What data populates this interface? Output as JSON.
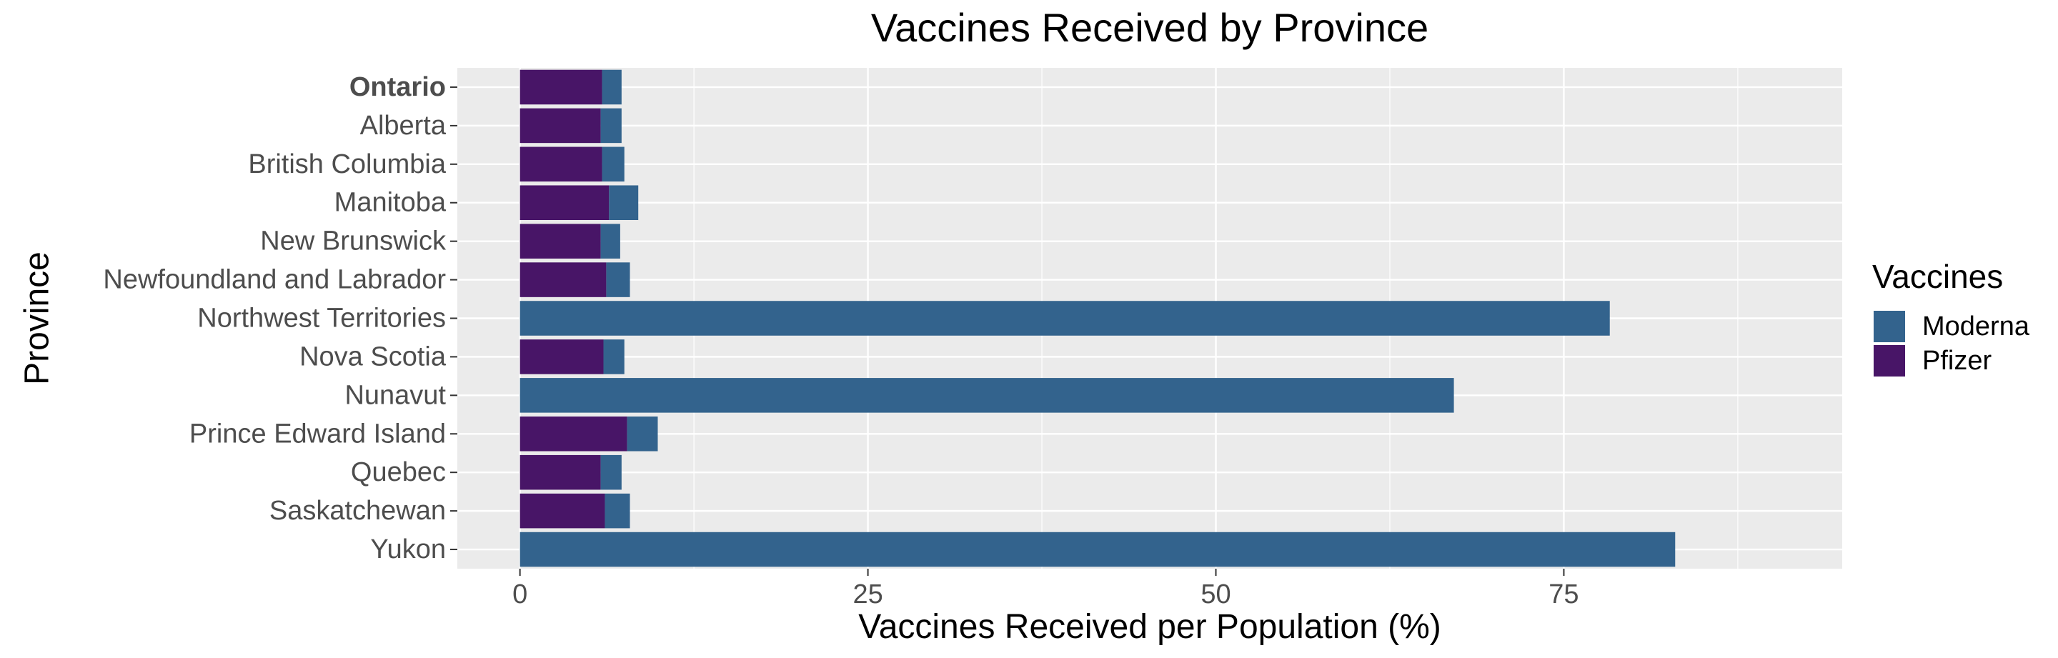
{
  "chart_data": {
    "type": "bar",
    "stacked": true,
    "orientation": "horizontal",
    "title": "Vaccines Received by Province",
    "xlabel": "Vaccines Received per Population (%)",
    "ylabel": "Province",
    "xlim": [
      -4.5,
      95
    ],
    "x_ticks": [
      0,
      25,
      50,
      75
    ],
    "grid": true,
    "legend": {
      "title": "Vaccines",
      "position": "right"
    },
    "categories": [
      "Ontario",
      "Alberta",
      "British Columbia",
      "Manitoba",
      "New Brunswick",
      "Newfoundland and  Labrador",
      "Northwest  Territories",
      "Nova Scotia",
      "Nunavut",
      "Prince Edward  Island",
      "Quebec",
      "Saskatchewan",
      "Yukon"
    ],
    "bold_categories": [
      "Ontario"
    ],
    "series": [
      {
        "name": "Pfizer",
        "color": "#481567",
        "values": [
          5.9,
          5.8,
          5.9,
          6.4,
          5.8,
          6.2,
          0,
          6.0,
          0,
          7.7,
          5.8,
          6.1,
          0
        ]
      },
      {
        "name": "Moderna",
        "color": "#33638D",
        "values": [
          1.4,
          1.5,
          1.6,
          2.1,
          1.4,
          1.7,
          78.3,
          1.5,
          67.1,
          2.2,
          1.5,
          1.8,
          83.0
        ]
      }
    ],
    "legend_order": [
      "Moderna",
      "Pfizer"
    ]
  }
}
